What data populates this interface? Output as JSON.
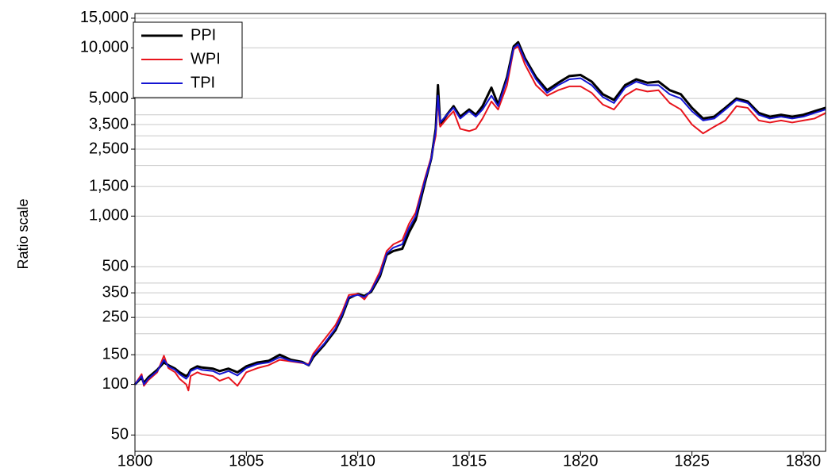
{
  "chart_data": {
    "type": "line",
    "y_label": "Ratio scale",
    "log_y": true,
    "grid": true,
    "legend": "upper left",
    "xlim": [
      1800,
      1831
    ],
    "xticks": [
      1800,
      1805,
      1810,
      1815,
      1820,
      1825,
      1830
    ],
    "ylim": [
      40,
      16000
    ],
    "yticks": [
      50,
      100,
      150,
      250,
      350,
      500,
      {
        "value": 1000,
        "label": "1,000"
      },
      {
        "value": 1500,
        "label": "1,500"
      },
      {
        "value": 2500,
        "label": "2,500"
      },
      {
        "value": 3500,
        "label": "3,500"
      },
      {
        "value": 5000,
        "label": "5,000"
      },
      {
        "value": 10000,
        "label": "10,000"
      },
      {
        "value": 15000,
        "label": "15,000"
      }
    ],
    "minor_yticks": [
      200,
      300,
      400,
      2000,
      3000,
      4000
    ],
    "x": [
      1800.0,
      1800.3,
      1800.4,
      1800.6,
      1801.0,
      1801.3,
      1801.5,
      1801.8,
      1802.0,
      1802.3,
      1802.4,
      1802.5,
      1802.8,
      1803.0,
      1803.5,
      1803.8,
      1804.2,
      1804.6,
      1805.0,
      1805.5,
      1806.0,
      1806.5,
      1807.0,
      1807.5,
      1807.8,
      1808.0,
      1808.5,
      1809.0,
      1809.3,
      1809.6,
      1810.0,
      1810.3,
      1810.6,
      1811.0,
      1811.3,
      1811.6,
      1812.0,
      1812.3,
      1812.6,
      1813.0,
      1813.3,
      1813.5,
      1813.6,
      1813.7,
      1814.0,
      1814.3,
      1814.6,
      1815.0,
      1815.3,
      1815.6,
      1816.0,
      1816.3,
      1816.7,
      1817.0,
      1817.2,
      1817.5,
      1818.0,
      1818.5,
      1819.0,
      1819.5,
      1820.0,
      1820.5,
      1821.0,
      1821.5,
      1822.0,
      1822.5,
      1823.0,
      1823.5,
      1824.0,
      1824.5,
      1825.0,
      1825.5,
      1826.0,
      1826.5,
      1827.0,
      1827.5,
      1828.0,
      1828.5,
      1829.0,
      1829.5,
      1830.0,
      1830.5,
      1831.0
    ],
    "series": [
      {
        "name": "PPI",
        "color": "#000000",
        "width": 3,
        "values": [
          100,
          110,
          102,
          110,
          122,
          135,
          130,
          124,
          118,
          112,
          115,
          122,
          128,
          126,
          124,
          120,
          124,
          118,
          128,
          135,
          138,
          150,
          140,
          136,
          130,
          145,
          172,
          210,
          255,
          325,
          345,
          335,
          355,
          440,
          590,
          620,
          640,
          800,
          950,
          1550,
          2200,
          3300,
          6000,
          3500,
          4000,
          4500,
          3900,
          4300,
          4000,
          4500,
          5800,
          4600,
          6700,
          10200,
          10800,
          8700,
          6700,
          5600,
          6200,
          6800,
          6900,
          6300,
          5300,
          4900,
          6000,
          6500,
          6200,
          6300,
          5600,
          5300,
          4400,
          3800,
          3900,
          4400,
          5000,
          4800,
          4100,
          3900,
          4000,
          3900,
          4000,
          4200,
          4400
        ]
      },
      {
        "name": "WPI",
        "color": "#e8141c",
        "width": 2,
        "values": [
          100,
          115,
          98,
          106,
          118,
          148,
          125,
          118,
          108,
          100,
          92,
          112,
          118,
          115,
          112,
          105,
          110,
          98,
          118,
          125,
          130,
          140,
          137,
          134,
          132,
          152,
          185,
          225,
          270,
          340,
          345,
          320,
          365,
          470,
          620,
          680,
          720,
          900,
          1050,
          1650,
          2250,
          3000,
          5000,
          3400,
          3800,
          4200,
          3300,
          3200,
          3300,
          3800,
          4800,
          4300,
          6000,
          9800,
          10200,
          8000,
          6000,
          5200,
          5600,
          5900,
          5900,
          5400,
          4600,
          4300,
          5200,
          5700,
          5500,
          5600,
          4700,
          4300,
          3500,
          3100,
          3400,
          3700,
          4500,
          4400,
          3700,
          3600,
          3700,
          3600,
          3700,
          3800,
          4100
        ]
      },
      {
        "name": "TPI",
        "color": "#1414d2",
        "width": 2,
        "values": [
          100,
          112,
          100,
          108,
          120,
          140,
          128,
          122,
          115,
          108,
          112,
          120,
          125,
          122,
          120,
          115,
          120,
          113,
          125,
          132,
          135,
          145,
          138,
          135,
          130,
          148,
          175,
          215,
          260,
          330,
          340,
          330,
          360,
          450,
          600,
          650,
          680,
          850,
          1000,
          1600,
          2200,
          3200,
          5200,
          3600,
          4000,
          4400,
          3800,
          4200,
          3900,
          4300,
          5200,
          4500,
          6500,
          10000,
          10500,
          8500,
          6500,
          5400,
          6000,
          6500,
          6600,
          6000,
          5100,
          4700,
          5800,
          6300,
          6000,
          6000,
          5300,
          5000,
          4200,
          3700,
          3800,
          4300,
          4900,
          4700,
          4000,
          3800,
          3900,
          3800,
          3900,
          4100,
          4300
        ]
      }
    ]
  }
}
